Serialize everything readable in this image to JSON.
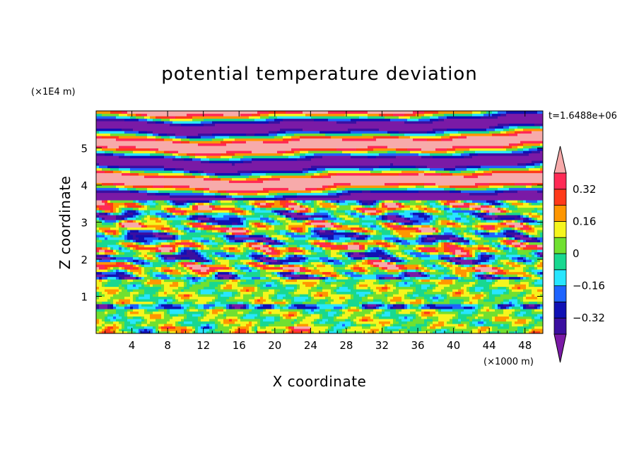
{
  "chart_data": {
    "type": "heatmap",
    "title": "potential temperature deviation",
    "xlabel": "X coordinate",
    "ylabel": "Z coordinate",
    "x_unit": "(×1000 m)",
    "y_unit": "(×1E4 m)",
    "time_label": "t=1.6488e+06",
    "xlim": [
      0,
      50
    ],
    "ylim": [
      0,
      6
    ],
    "x_ticks": [
      4,
      8,
      12,
      16,
      20,
      24,
      28,
      32,
      36,
      40,
      44,
      48
    ],
    "y_ticks": [
      1,
      2,
      3,
      4,
      5
    ],
    "colorbar": {
      "levels": [
        -0.4,
        -0.32,
        -0.24,
        -0.16,
        -0.08,
        0,
        0.08,
        0.16,
        0.24,
        0.32,
        0.4
      ],
      "tick_labels": [
        "0.32",
        "0.16",
        "0",
        "−0.16",
        "−0.32"
      ],
      "tick_values": [
        0.32,
        0.16,
        0,
        -0.16,
        -0.32
      ],
      "colors": [
        "#7a1aa6",
        "#3b0fa0",
        "#1010b4",
        "#1e64ff",
        "#28e6ff",
        "#18d890",
        "#70e030",
        "#f5f51e",
        "#ff9600",
        "#ff3a1a",
        "#ff2a55",
        "#f7aaaa"
      ]
    },
    "note": "Horizontally stratified field: alternating pink (positive) and purple (negative) layers above z≈3.5, mixed small-scale cells between z≈1.5 and 3.5, greenish near-zero values below z≈1.3."
  }
}
